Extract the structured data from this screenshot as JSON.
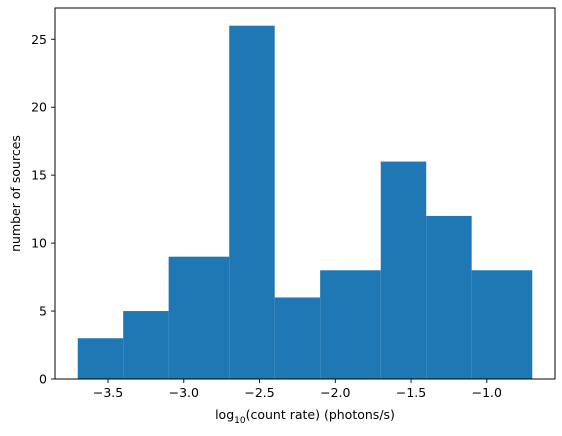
{
  "chart_data": {
    "type": "bar",
    "histogram": true,
    "bin_edges": [
      -3.7,
      -3.4,
      -3.1,
      -2.7,
      -2.4,
      -2.1,
      -1.7,
      -1.4,
      -1.1,
      -0.7
    ],
    "values": [
      3,
      5,
      9,
      26,
      6,
      8,
      16,
      12,
      8
    ],
    "color": "#1f77b4",
    "xlim": [
      -3.85,
      -0.55
    ],
    "ylim": [
      0,
      27.3
    ],
    "x_ticks": [
      -3.5,
      -3.0,
      -2.5,
      -2.0,
      -1.5,
      -1.0
    ],
    "x_tick_labels": [
      "−3.5",
      "−3.0",
      "−2.5",
      "−2.0",
      "−1.5",
      "−1.0"
    ],
    "y_ticks": [
      0,
      5,
      10,
      15,
      20,
      25
    ],
    "y_tick_labels": [
      "0",
      "5",
      "10",
      "15",
      "20",
      "25"
    ],
    "xlabel": {
      "prefix": "log",
      "subscript": "10",
      "suffix": "(count rate) (photons/s)"
    },
    "ylabel": "number of sources",
    "grid": false,
    "legend": "none"
  }
}
